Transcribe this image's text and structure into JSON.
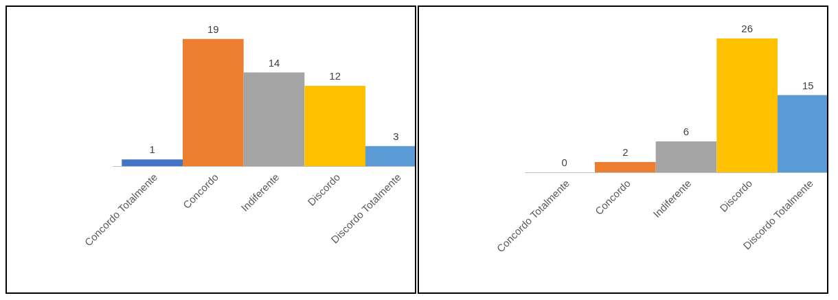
{
  "chart_data": [
    {
      "type": "bar",
      "categories": [
        "Concordo Totalmente",
        "Concordo",
        "Indiferente",
        "Discordo",
        "Discordo Totalmente"
      ],
      "values": [
        1,
        19,
        14,
        12,
        3
      ],
      "colors": [
        "#4472c4",
        "#ed7d31",
        "#a5a5a5",
        "#ffc000",
        "#5b9bd5"
      ],
      "data_labels": true
    },
    {
      "type": "bar",
      "categories": [
        "Concordo Totalmente",
        "Concordo",
        "Indiferente",
        "Discordo",
        "Discordo Totalmente"
      ],
      "values": [
        0,
        2,
        6,
        26,
        15
      ],
      "colors": [
        "#4472c4",
        "#ed7d31",
        "#a5a5a5",
        "#ffc000",
        "#5b9bd5"
      ],
      "data_labels": true
    }
  ]
}
